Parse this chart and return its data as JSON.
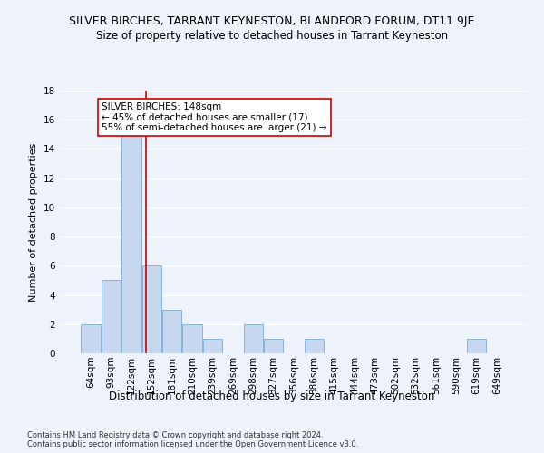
{
  "title": "SILVER BIRCHES, TARRANT KEYNESTON, BLANDFORD FORUM, DT11 9JE",
  "subtitle": "Size of property relative to detached houses in Tarrant Keyneston",
  "xlabel": "Distribution of detached houses by size in Tarrant Keyneston",
  "ylabel": "Number of detached properties",
  "footer_line1": "Contains HM Land Registry data © Crown copyright and database right 2024.",
  "footer_line2": "Contains public sector information licensed under the Open Government Licence v3.0.",
  "categories": [
    "64sqm",
    "93sqm",
    "122sqm",
    "152sqm",
    "181sqm",
    "210sqm",
    "239sqm",
    "269sqm",
    "298sqm",
    "327sqm",
    "356sqm",
    "386sqm",
    "415sqm",
    "444sqm",
    "473sqm",
    "502sqm",
    "532sqm",
    "561sqm",
    "590sqm",
    "619sqm",
    "649sqm"
  ],
  "values": [
    2,
    5,
    15,
    6,
    3,
    2,
    1,
    0,
    2,
    1,
    0,
    1,
    0,
    0,
    0,
    0,
    0,
    0,
    0,
    1,
    0
  ],
  "bar_color": "#c5d8f0",
  "bar_edge_color": "#7badd4",
  "vline_position": 2.72,
  "vline_color": "#cc0000",
  "annotation_line1": "SILVER BIRCHES: 148sqm",
  "annotation_line2": "← 45% of detached houses are smaller (17)",
  "annotation_line3": "55% of semi-detached houses are larger (21) →",
  "annotation_box_color": "#ffffff",
  "annotation_box_edge_color": "#cc0000",
  "ylim": [
    0,
    18
  ],
  "background_color": "#edf2fb",
  "plot_bg_color": "#edf2fb",
  "grid_color": "#ffffff",
  "title_fontsize": 9,
  "subtitle_fontsize": 8.5,
  "xlabel_fontsize": 8.5,
  "ylabel_fontsize": 8,
  "tick_fontsize": 7.5,
  "annotation_fontsize": 7.5,
  "footer_fontsize": 6
}
